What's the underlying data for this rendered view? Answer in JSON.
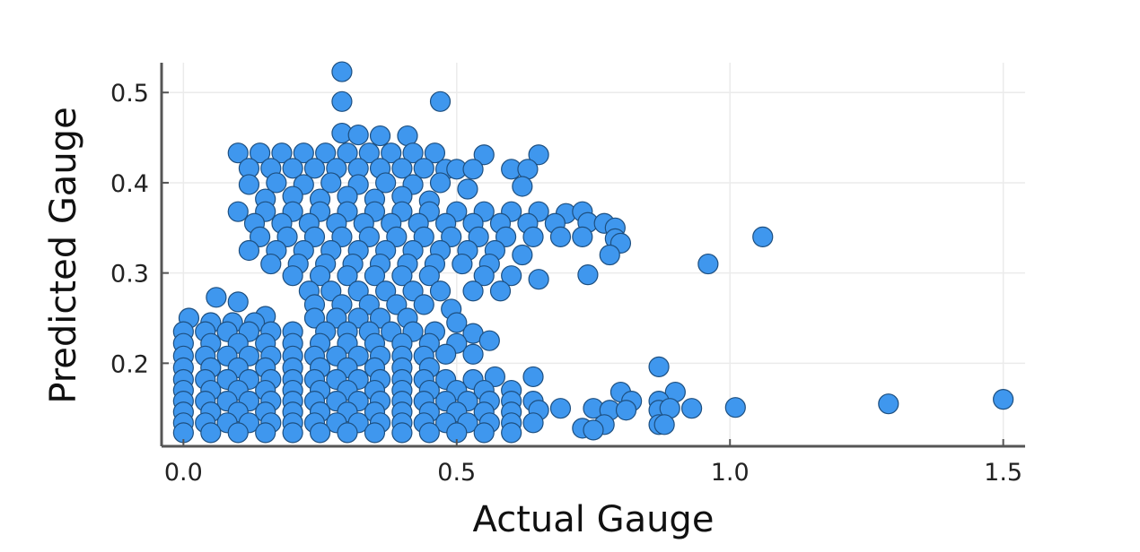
{
  "chart_data": {
    "type": "scatter",
    "title": "",
    "xlabel": "Actual Gauge",
    "ylabel": "Predicted Gauge",
    "xlim": [
      -0.04,
      1.54
    ],
    "ylim": [
      0.108,
      0.533
    ],
    "xticks": [
      0.0,
      0.5,
      1.0,
      1.5
    ],
    "xtick_labels": [
      "0.0",
      "0.5",
      "1.0",
      "1.5"
    ],
    "yticks": [
      0.2,
      0.3,
      0.4,
      0.5
    ],
    "ytick_labels": [
      "0.2",
      "0.3",
      "0.4",
      "0.5"
    ],
    "grid": true,
    "legend": "none",
    "colors": {
      "marker_fill": "#3f97ee",
      "marker_edge": "#1d4f80"
    },
    "series": [
      {
        "points": [
          [
            0.29,
            0.523
          ],
          [
            0.29,
            0.49
          ],
          [
            0.47,
            0.49
          ],
          [
            0.29,
            0.455
          ],
          [
            0.32,
            0.453
          ],
          [
            0.36,
            0.452
          ],
          [
            0.41,
            0.452
          ],
          [
            0.1,
            0.433
          ],
          [
            0.14,
            0.433
          ],
          [
            0.18,
            0.433
          ],
          [
            0.22,
            0.433
          ],
          [
            0.26,
            0.433
          ],
          [
            0.3,
            0.433
          ],
          [
            0.34,
            0.433
          ],
          [
            0.38,
            0.433
          ],
          [
            0.42,
            0.433
          ],
          [
            0.46,
            0.433
          ],
          [
            0.55,
            0.431
          ],
          [
            0.65,
            0.431
          ],
          [
            0.12,
            0.416
          ],
          [
            0.16,
            0.416
          ],
          [
            0.2,
            0.416
          ],
          [
            0.24,
            0.416
          ],
          [
            0.28,
            0.416
          ],
          [
            0.32,
            0.416
          ],
          [
            0.36,
            0.416
          ],
          [
            0.4,
            0.416
          ],
          [
            0.44,
            0.416
          ],
          [
            0.48,
            0.415
          ],
          [
            0.5,
            0.415
          ],
          [
            0.53,
            0.415
          ],
          [
            0.6,
            0.415
          ],
          [
            0.63,
            0.415
          ],
          [
            0.12,
            0.398
          ],
          [
            0.17,
            0.4
          ],
          [
            0.22,
            0.398
          ],
          [
            0.27,
            0.4
          ],
          [
            0.32,
            0.398
          ],
          [
            0.37,
            0.4
          ],
          [
            0.42,
            0.398
          ],
          [
            0.47,
            0.4
          ],
          [
            0.52,
            0.393
          ],
          [
            0.62,
            0.396
          ],
          [
            0.15,
            0.382
          ],
          [
            0.2,
            0.385
          ],
          [
            0.25,
            0.382
          ],
          [
            0.3,
            0.385
          ],
          [
            0.35,
            0.382
          ],
          [
            0.4,
            0.385
          ],
          [
            0.45,
            0.38
          ],
          [
            0.1,
            0.368
          ],
          [
            0.15,
            0.368
          ],
          [
            0.2,
            0.368
          ],
          [
            0.25,
            0.368
          ],
          [
            0.3,
            0.368
          ],
          [
            0.35,
            0.368
          ],
          [
            0.4,
            0.368
          ],
          [
            0.45,
            0.368
          ],
          [
            0.5,
            0.368
          ],
          [
            0.55,
            0.368
          ],
          [
            0.6,
            0.368
          ],
          [
            0.65,
            0.368
          ],
          [
            0.7,
            0.366
          ],
          [
            0.73,
            0.368
          ],
          [
            0.13,
            0.355
          ],
          [
            0.18,
            0.355
          ],
          [
            0.23,
            0.355
          ],
          [
            0.28,
            0.355
          ],
          [
            0.33,
            0.355
          ],
          [
            0.38,
            0.355
          ],
          [
            0.43,
            0.355
          ],
          [
            0.48,
            0.355
          ],
          [
            0.53,
            0.355
          ],
          [
            0.58,
            0.355
          ],
          [
            0.63,
            0.355
          ],
          [
            0.68,
            0.355
          ],
          [
            0.74,
            0.356
          ],
          [
            0.77,
            0.355
          ],
          [
            0.79,
            0.35
          ],
          [
            0.14,
            0.34
          ],
          [
            0.19,
            0.34
          ],
          [
            0.24,
            0.34
          ],
          [
            0.29,
            0.34
          ],
          [
            0.34,
            0.34
          ],
          [
            0.39,
            0.34
          ],
          [
            0.44,
            0.34
          ],
          [
            0.49,
            0.34
          ],
          [
            0.54,
            0.34
          ],
          [
            0.59,
            0.34
          ],
          [
            0.64,
            0.34
          ],
          [
            0.69,
            0.34
          ],
          [
            0.73,
            0.34
          ],
          [
            0.79,
            0.338
          ],
          [
            0.8,
            0.333
          ],
          [
            1.06,
            0.34
          ],
          [
            0.12,
            0.325
          ],
          [
            0.17,
            0.325
          ],
          [
            0.22,
            0.325
          ],
          [
            0.27,
            0.325
          ],
          [
            0.32,
            0.325
          ],
          [
            0.37,
            0.325
          ],
          [
            0.42,
            0.325
          ],
          [
            0.47,
            0.325
          ],
          [
            0.52,
            0.325
          ],
          [
            0.57,
            0.325
          ],
          [
            0.62,
            0.32
          ],
          [
            0.78,
            0.32
          ],
          [
            0.16,
            0.31
          ],
          [
            0.21,
            0.31
          ],
          [
            0.26,
            0.31
          ],
          [
            0.31,
            0.31
          ],
          [
            0.36,
            0.31
          ],
          [
            0.41,
            0.31
          ],
          [
            0.46,
            0.31
          ],
          [
            0.51,
            0.31
          ],
          [
            0.56,
            0.31
          ],
          [
            0.96,
            0.31
          ],
          [
            0.2,
            0.297
          ],
          [
            0.25,
            0.297
          ],
          [
            0.3,
            0.297
          ],
          [
            0.35,
            0.297
          ],
          [
            0.4,
            0.297
          ],
          [
            0.45,
            0.297
          ],
          [
            0.55,
            0.297
          ],
          [
            0.6,
            0.297
          ],
          [
            0.65,
            0.293
          ],
          [
            0.74,
            0.298
          ],
          [
            0.23,
            0.28
          ],
          [
            0.27,
            0.28
          ],
          [
            0.32,
            0.28
          ],
          [
            0.37,
            0.28
          ],
          [
            0.42,
            0.28
          ],
          [
            0.47,
            0.28
          ],
          [
            0.53,
            0.28
          ],
          [
            0.58,
            0.28
          ],
          [
            0.06,
            0.273
          ],
          [
            0.1,
            0.268
          ],
          [
            0.24,
            0.265
          ],
          [
            0.29,
            0.265
          ],
          [
            0.34,
            0.265
          ],
          [
            0.39,
            0.265
          ],
          [
            0.44,
            0.265
          ],
          [
            0.24,
            0.25
          ],
          [
            0.28,
            0.25
          ],
          [
            0.32,
            0.25
          ],
          [
            0.36,
            0.25
          ],
          [
            0.41,
            0.25
          ],
          [
            0.49,
            0.26
          ],
          [
            0.5,
            0.245
          ],
          [
            0.15,
            0.252
          ],
          [
            0.01,
            0.25
          ],
          [
            0.05,
            0.245
          ],
          [
            0.09,
            0.245
          ],
          [
            0.13,
            0.245
          ],
          [
            0.0,
            0.235
          ],
          [
            0.04,
            0.235
          ],
          [
            0.08,
            0.235
          ],
          [
            0.12,
            0.235
          ],
          [
            0.16,
            0.235
          ],
          [
            0.2,
            0.235
          ],
          [
            0.26,
            0.235
          ],
          [
            0.3,
            0.235
          ],
          [
            0.34,
            0.235
          ],
          [
            0.38,
            0.235
          ],
          [
            0.42,
            0.235
          ],
          [
            0.46,
            0.235
          ],
          [
            0.53,
            0.233
          ],
          [
            0.56,
            0.225
          ],
          [
            0.0,
            0.222
          ],
          [
            0.05,
            0.222
          ],
          [
            0.1,
            0.222
          ],
          [
            0.15,
            0.222
          ],
          [
            0.2,
            0.222
          ],
          [
            0.25,
            0.222
          ],
          [
            0.3,
            0.222
          ],
          [
            0.35,
            0.222
          ],
          [
            0.4,
            0.222
          ],
          [
            0.45,
            0.222
          ],
          [
            0.5,
            0.222
          ],
          [
            0.0,
            0.208
          ],
          [
            0.04,
            0.208
          ],
          [
            0.08,
            0.208
          ],
          [
            0.12,
            0.208
          ],
          [
            0.16,
            0.208
          ],
          [
            0.2,
            0.208
          ],
          [
            0.24,
            0.208
          ],
          [
            0.28,
            0.208
          ],
          [
            0.32,
            0.208
          ],
          [
            0.36,
            0.208
          ],
          [
            0.4,
            0.208
          ],
          [
            0.44,
            0.208
          ],
          [
            0.48,
            0.21
          ],
          [
            0.53,
            0.21
          ],
          [
            0.0,
            0.195
          ],
          [
            0.05,
            0.195
          ],
          [
            0.1,
            0.195
          ],
          [
            0.15,
            0.195
          ],
          [
            0.2,
            0.195
          ],
          [
            0.25,
            0.195
          ],
          [
            0.3,
            0.195
          ],
          [
            0.35,
            0.195
          ],
          [
            0.4,
            0.195
          ],
          [
            0.45,
            0.195
          ],
          [
            0.87,
            0.196
          ],
          [
            0.0,
            0.182
          ],
          [
            0.04,
            0.182
          ],
          [
            0.08,
            0.182
          ],
          [
            0.12,
            0.182
          ],
          [
            0.16,
            0.182
          ],
          [
            0.2,
            0.182
          ],
          [
            0.24,
            0.182
          ],
          [
            0.28,
            0.182
          ],
          [
            0.32,
            0.182
          ],
          [
            0.36,
            0.182
          ],
          [
            0.4,
            0.182
          ],
          [
            0.44,
            0.182
          ],
          [
            0.48,
            0.182
          ],
          [
            0.53,
            0.182
          ],
          [
            0.57,
            0.185
          ],
          [
            0.64,
            0.185
          ],
          [
            0.0,
            0.17
          ],
          [
            0.05,
            0.17
          ],
          [
            0.1,
            0.17
          ],
          [
            0.15,
            0.17
          ],
          [
            0.2,
            0.17
          ],
          [
            0.25,
            0.17
          ],
          [
            0.3,
            0.17
          ],
          [
            0.35,
            0.17
          ],
          [
            0.4,
            0.17
          ],
          [
            0.45,
            0.17
          ],
          [
            0.5,
            0.17
          ],
          [
            0.55,
            0.17
          ],
          [
            0.6,
            0.17
          ],
          [
            0.8,
            0.168
          ],
          [
            0.9,
            0.168
          ],
          [
            0.0,
            0.158
          ],
          [
            0.04,
            0.158
          ],
          [
            0.08,
            0.158
          ],
          [
            0.12,
            0.158
          ],
          [
            0.16,
            0.158
          ],
          [
            0.2,
            0.158
          ],
          [
            0.24,
            0.158
          ],
          [
            0.28,
            0.158
          ],
          [
            0.32,
            0.158
          ],
          [
            0.36,
            0.158
          ],
          [
            0.4,
            0.158
          ],
          [
            0.44,
            0.158
          ],
          [
            0.48,
            0.158
          ],
          [
            0.52,
            0.158
          ],
          [
            0.56,
            0.158
          ],
          [
            0.6,
            0.158
          ],
          [
            0.64,
            0.158
          ],
          [
            0.82,
            0.158
          ],
          [
            0.87,
            0.158
          ],
          [
            1.29,
            0.155
          ],
          [
            1.5,
            0.16
          ],
          [
            0.0,
            0.146
          ],
          [
            0.05,
            0.146
          ],
          [
            0.1,
            0.146
          ],
          [
            0.15,
            0.146
          ],
          [
            0.2,
            0.146
          ],
          [
            0.25,
            0.146
          ],
          [
            0.3,
            0.146
          ],
          [
            0.35,
            0.146
          ],
          [
            0.4,
            0.146
          ],
          [
            0.45,
            0.146
          ],
          [
            0.5,
            0.146
          ],
          [
            0.55,
            0.146
          ],
          [
            0.6,
            0.146
          ],
          [
            0.65,
            0.148
          ],
          [
            0.69,
            0.15
          ],
          [
            0.75,
            0.15
          ],
          [
            0.78,
            0.148
          ],
          [
            0.81,
            0.148
          ],
          [
            0.87,
            0.148
          ],
          [
            0.89,
            0.15
          ],
          [
            0.93,
            0.15
          ],
          [
            1.01,
            0.151
          ],
          [
            0.0,
            0.134
          ],
          [
            0.04,
            0.134
          ],
          [
            0.08,
            0.134
          ],
          [
            0.12,
            0.134
          ],
          [
            0.16,
            0.134
          ],
          [
            0.2,
            0.134
          ],
          [
            0.24,
            0.134
          ],
          [
            0.28,
            0.134
          ],
          [
            0.32,
            0.134
          ],
          [
            0.36,
            0.134
          ],
          [
            0.4,
            0.134
          ],
          [
            0.44,
            0.134
          ],
          [
            0.48,
            0.134
          ],
          [
            0.52,
            0.134
          ],
          [
            0.56,
            0.134
          ],
          [
            0.6,
            0.134
          ],
          [
            0.64,
            0.134
          ],
          [
            0.77,
            0.132
          ],
          [
            0.87,
            0.132
          ],
          [
            0.88,
            0.132
          ],
          [
            0.0,
            0.123
          ],
          [
            0.05,
            0.123
          ],
          [
            0.1,
            0.123
          ],
          [
            0.15,
            0.123
          ],
          [
            0.2,
            0.123
          ],
          [
            0.25,
            0.123
          ],
          [
            0.3,
            0.123
          ],
          [
            0.35,
            0.123
          ],
          [
            0.4,
            0.123
          ],
          [
            0.45,
            0.123
          ],
          [
            0.5,
            0.123
          ],
          [
            0.55,
            0.123
          ],
          [
            0.6,
            0.123
          ],
          [
            0.73,
            0.128
          ],
          [
            0.75,
            0.126
          ]
        ]
      }
    ]
  }
}
